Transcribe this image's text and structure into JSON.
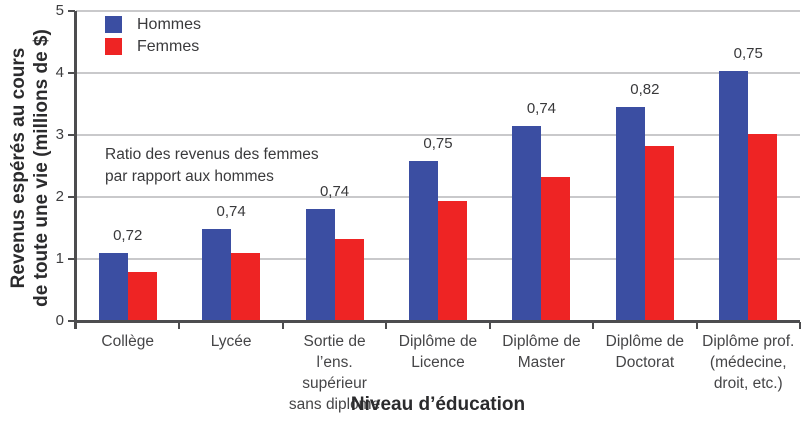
{
  "chart_data": {
    "type": "bar",
    "title": "",
    "xlabel": "Niveau d’éducation",
    "ylabel_lines": [
      "Revenus espérés au cours",
      "de toute une vie (millions de $)"
    ],
    "ylim": [
      0,
      5
    ],
    "ytick_labels": [
      "0",
      "1",
      "2",
      "3",
      "4",
      "5"
    ],
    "grid": true,
    "legend_position": "top-left-inside",
    "annotation_lines": [
      "Ratio des revenus des femmes",
      "par rapport aux hommes"
    ],
    "categories": [
      [
        "Collège"
      ],
      [
        "Lycée"
      ],
      [
        "Sortie de",
        "l’ens. supérieur",
        "sans diplôme"
      ],
      [
        "Diplôme de",
        "Licence"
      ],
      [
        "Diplôme de",
        "Master"
      ],
      [
        "Diplôme de",
        "Doctorat"
      ],
      [
        "Diplôme prof.",
        "(médecine,",
        "droit, etc.)"
      ]
    ],
    "series": [
      {
        "name": "Hommes",
        "color": "#3b4ea2",
        "values": [
          1.1,
          1.48,
          1.8,
          2.58,
          3.15,
          3.45,
          4.03
        ]
      },
      {
        "name": "Femmes",
        "color": "#ee2424",
        "values": [
          0.79,
          1.1,
          1.33,
          1.94,
          2.33,
          2.83,
          3.02
        ]
      }
    ],
    "ratio_labels": [
      "0,72",
      "0,74",
      "0,74",
      "0,75",
      "0,74",
      "0,82",
      "0,75"
    ]
  },
  "colors": {
    "hommes": "#3b4ea2",
    "femmes": "#ee2424",
    "gridline": "#c9c9cb",
    "axis": "#4d4d4f",
    "text": "#3a3a3c"
  }
}
